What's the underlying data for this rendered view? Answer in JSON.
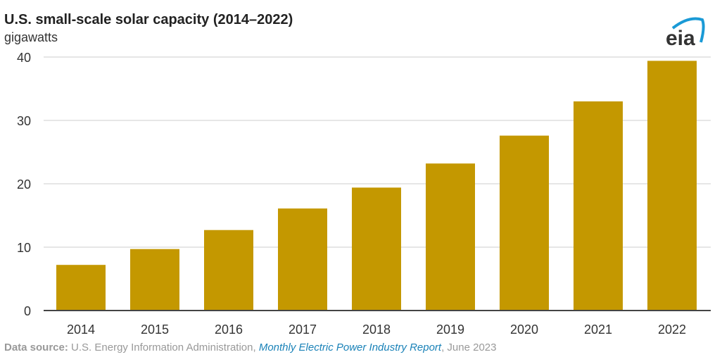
{
  "chart_data": {
    "type": "bar",
    "title": "U.S. small-scale solar capacity (2014–2022)",
    "ylabel": "gigawatts",
    "xlabel": "",
    "categories": [
      "2014",
      "2015",
      "2016",
      "2017",
      "2018",
      "2019",
      "2020",
      "2021",
      "2022"
    ],
    "values": [
      7.2,
      9.7,
      12.7,
      16.1,
      19.4,
      23.2,
      27.6,
      33.0,
      39.4
    ],
    "ylim": [
      0,
      40
    ],
    "yticks": [
      0,
      10,
      20,
      30,
      40
    ],
    "grid": true,
    "bar_color": "#c49800"
  },
  "logo_text": "eia",
  "source": {
    "label": "Data source:",
    "text": " U.S. Energy Information Administration, ",
    "report": "Monthly Electric Power Industry Report",
    "date": ", June 2023"
  }
}
